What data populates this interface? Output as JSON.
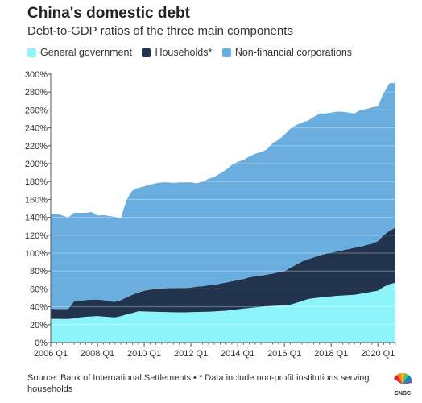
{
  "title": "China's domestic debt",
  "subtitle": "Debt-to-GDP ratios of the three main components",
  "source": "Source: Bank of International Settlements • * Data include non-profit institutions serving households",
  "logo_text": "CNBC",
  "chart_data": {
    "type": "area",
    "stacked": true,
    "title": "China's domestic debt",
    "subtitle": "Debt-to-GDP ratios of the three main components",
    "xlabel": "",
    "ylabel": "",
    "ylim": [
      0,
      300
    ],
    "yticks": [
      0,
      20,
      40,
      60,
      80,
      100,
      120,
      140,
      160,
      180,
      200,
      220,
      240,
      260,
      280,
      300
    ],
    "ytick_labels": [
      "0%",
      "20%",
      "40%",
      "60%",
      "80%",
      "100%",
      "120%",
      "140%",
      "160%",
      "180%",
      "200%",
      "220%",
      "240%",
      "260%",
      "280%",
      "300%"
    ],
    "xtick_labels": [
      "2006 Q1",
      "2008 Q1",
      "2010 Q1",
      "2012 Q1",
      "2014 Q1",
      "2016 Q1",
      "2018 Q1",
      "2020 Q1"
    ],
    "grid": true,
    "legend": "top-left",
    "x": [
      "2006 Q1",
      "2006 Q2",
      "2006 Q3",
      "2006 Q4",
      "2007 Q1",
      "2007 Q2",
      "2007 Q3",
      "2007 Q4",
      "2008 Q1",
      "2008 Q2",
      "2008 Q3",
      "2008 Q4",
      "2009 Q1",
      "2009 Q2",
      "2009 Q3",
      "2009 Q4",
      "2010 Q1",
      "2010 Q2",
      "2010 Q3",
      "2010 Q4",
      "2011 Q1",
      "2011 Q2",
      "2011 Q3",
      "2011 Q4",
      "2012 Q1",
      "2012 Q2",
      "2012 Q3",
      "2012 Q4",
      "2013 Q1",
      "2013 Q2",
      "2013 Q3",
      "2013 Q4",
      "2014 Q1",
      "2014 Q2",
      "2014 Q3",
      "2014 Q4",
      "2015 Q1",
      "2015 Q2",
      "2015 Q3",
      "2015 Q4",
      "2016 Q1",
      "2016 Q2",
      "2016 Q3",
      "2016 Q4",
      "2017 Q1",
      "2017 Q2",
      "2017 Q3",
      "2017 Q4",
      "2018 Q1",
      "2018 Q2",
      "2018 Q3",
      "2018 Q4",
      "2019 Q1",
      "2019 Q2",
      "2019 Q3",
      "2019 Q4",
      "2020 Q1",
      "2020 Q2",
      "2020 Q3",
      "2020 Q4"
    ],
    "series": [
      {
        "name": "General government",
        "color": "#8ef4fb",
        "values": [
          26.5,
          26.5,
          26.4,
          26.3,
          27.0,
          28.2,
          28.8,
          29.2,
          29.6,
          29.0,
          28.5,
          28.2,
          29.5,
          31.5,
          33.0,
          35.0,
          34.8,
          34.6,
          34.4,
          34.2,
          34.0,
          33.9,
          33.8,
          33.8,
          34.0,
          34.1,
          34.3,
          34.5,
          34.8,
          35.2,
          35.6,
          36.4,
          37.2,
          37.9,
          38.6,
          39.3,
          40.0,
          40.6,
          41.0,
          41.3,
          41.6,
          42.3,
          44.3,
          46.4,
          48.5,
          49.5,
          50.3,
          51.0,
          51.6,
          52.2,
          52.6,
          53.0,
          53.4,
          54.5,
          55.6,
          56.9,
          58.0,
          62.3,
          65.2,
          67.0
        ]
      },
      {
        "name": "Households*",
        "color": "#21334d",
        "values": [
          11.5,
          11.0,
          11.1,
          11.2,
          19.0,
          18.3,
          18.7,
          18.8,
          18.5,
          18.4,
          17.6,
          17.3,
          18.0,
          19.0,
          20.5,
          21.0,
          23.2,
          24.4,
          25.6,
          26.3,
          26.8,
          27.1,
          27.4,
          27.2,
          27.5,
          28.4,
          28.7,
          29.5,
          29.2,
          30.8,
          31.4,
          32.1,
          32.6,
          33.1,
          34.4,
          34.7,
          34.8,
          35.4,
          36.0,
          37.4,
          38.1,
          41.2,
          42.7,
          44.1,
          44.5,
          45.7,
          47.0,
          48.2,
          48.9,
          49.6,
          50.6,
          51.5,
          52.6,
          52.5,
          53.4,
          53.6,
          55.3,
          57.7,
          59.8,
          61.5
        ]
      },
      {
        "name": "Non-financial corporations",
        "color": "#6aaedf",
        "values": [
          106.0,
          106.5,
          104.5,
          102.5,
          99.0,
          98.5,
          97.5,
          98.0,
          93.9,
          95.1,
          95.4,
          95.0,
          91.5,
          109.5,
          116.5,
          117.0,
          116.5,
          117.5,
          118.0,
          118.5,
          118.2,
          117.5,
          117.8,
          118.0,
          117.5,
          115.5,
          117.0,
          119.0,
          121.0,
          123.0,
          126.0,
          130.0,
          132.2,
          133.0,
          135.0,
          137.0,
          138.0,
          140.0,
          146.0,
          148.0,
          152.6,
          155.5,
          156.0,
          155.5,
          155.0,
          156.8,
          158.7,
          156.8,
          156.5,
          156.2,
          154.8,
          152.5,
          150.0,
          153.0,
          152.0,
          152.5,
          150.7,
          159.0,
          165.0,
          161.5
        ]
      }
    ]
  }
}
